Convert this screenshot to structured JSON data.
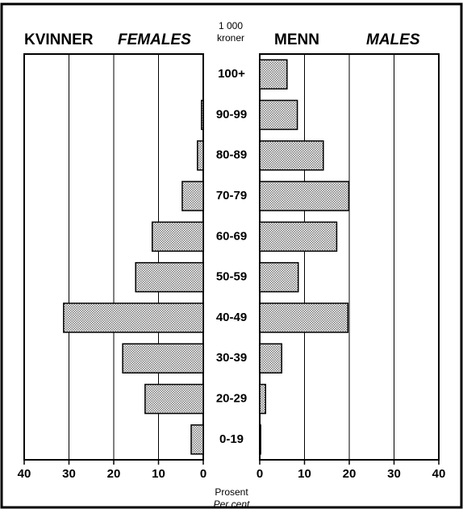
{
  "chart_data": {
    "type": "bar",
    "orientation": "horizontal",
    "unit_label": [
      "1 000",
      "kroner"
    ],
    "x_label": "Prosent",
    "x_label_en": "Per cent",
    "categories": [
      "100+",
      "90-99",
      "80-89",
      "70-79",
      "60-69",
      "50-59",
      "40-49",
      "30-39",
      "20-29",
      "0-19"
    ],
    "series": [
      {
        "name": "KVINNER",
        "name_en": "FEMALES",
        "color": "#c4c4c4",
        "values": [
          0,
          0.4,
          1.3,
          4.7,
          11.4,
          15.1,
          31.2,
          18,
          13,
          2.7
        ]
      },
      {
        "name": "MENN",
        "name_en": "MALES",
        "color": "#c4c4c4",
        "values": [
          6.1,
          8.4,
          14.2,
          19.9,
          17.2,
          8.6,
          19.7,
          4.9,
          1.3,
          0.2
        ]
      }
    ],
    "xlim": [
      0,
      40
    ],
    "xticks": [
      0,
      10,
      20,
      30,
      40
    ],
    "grid": true
  }
}
